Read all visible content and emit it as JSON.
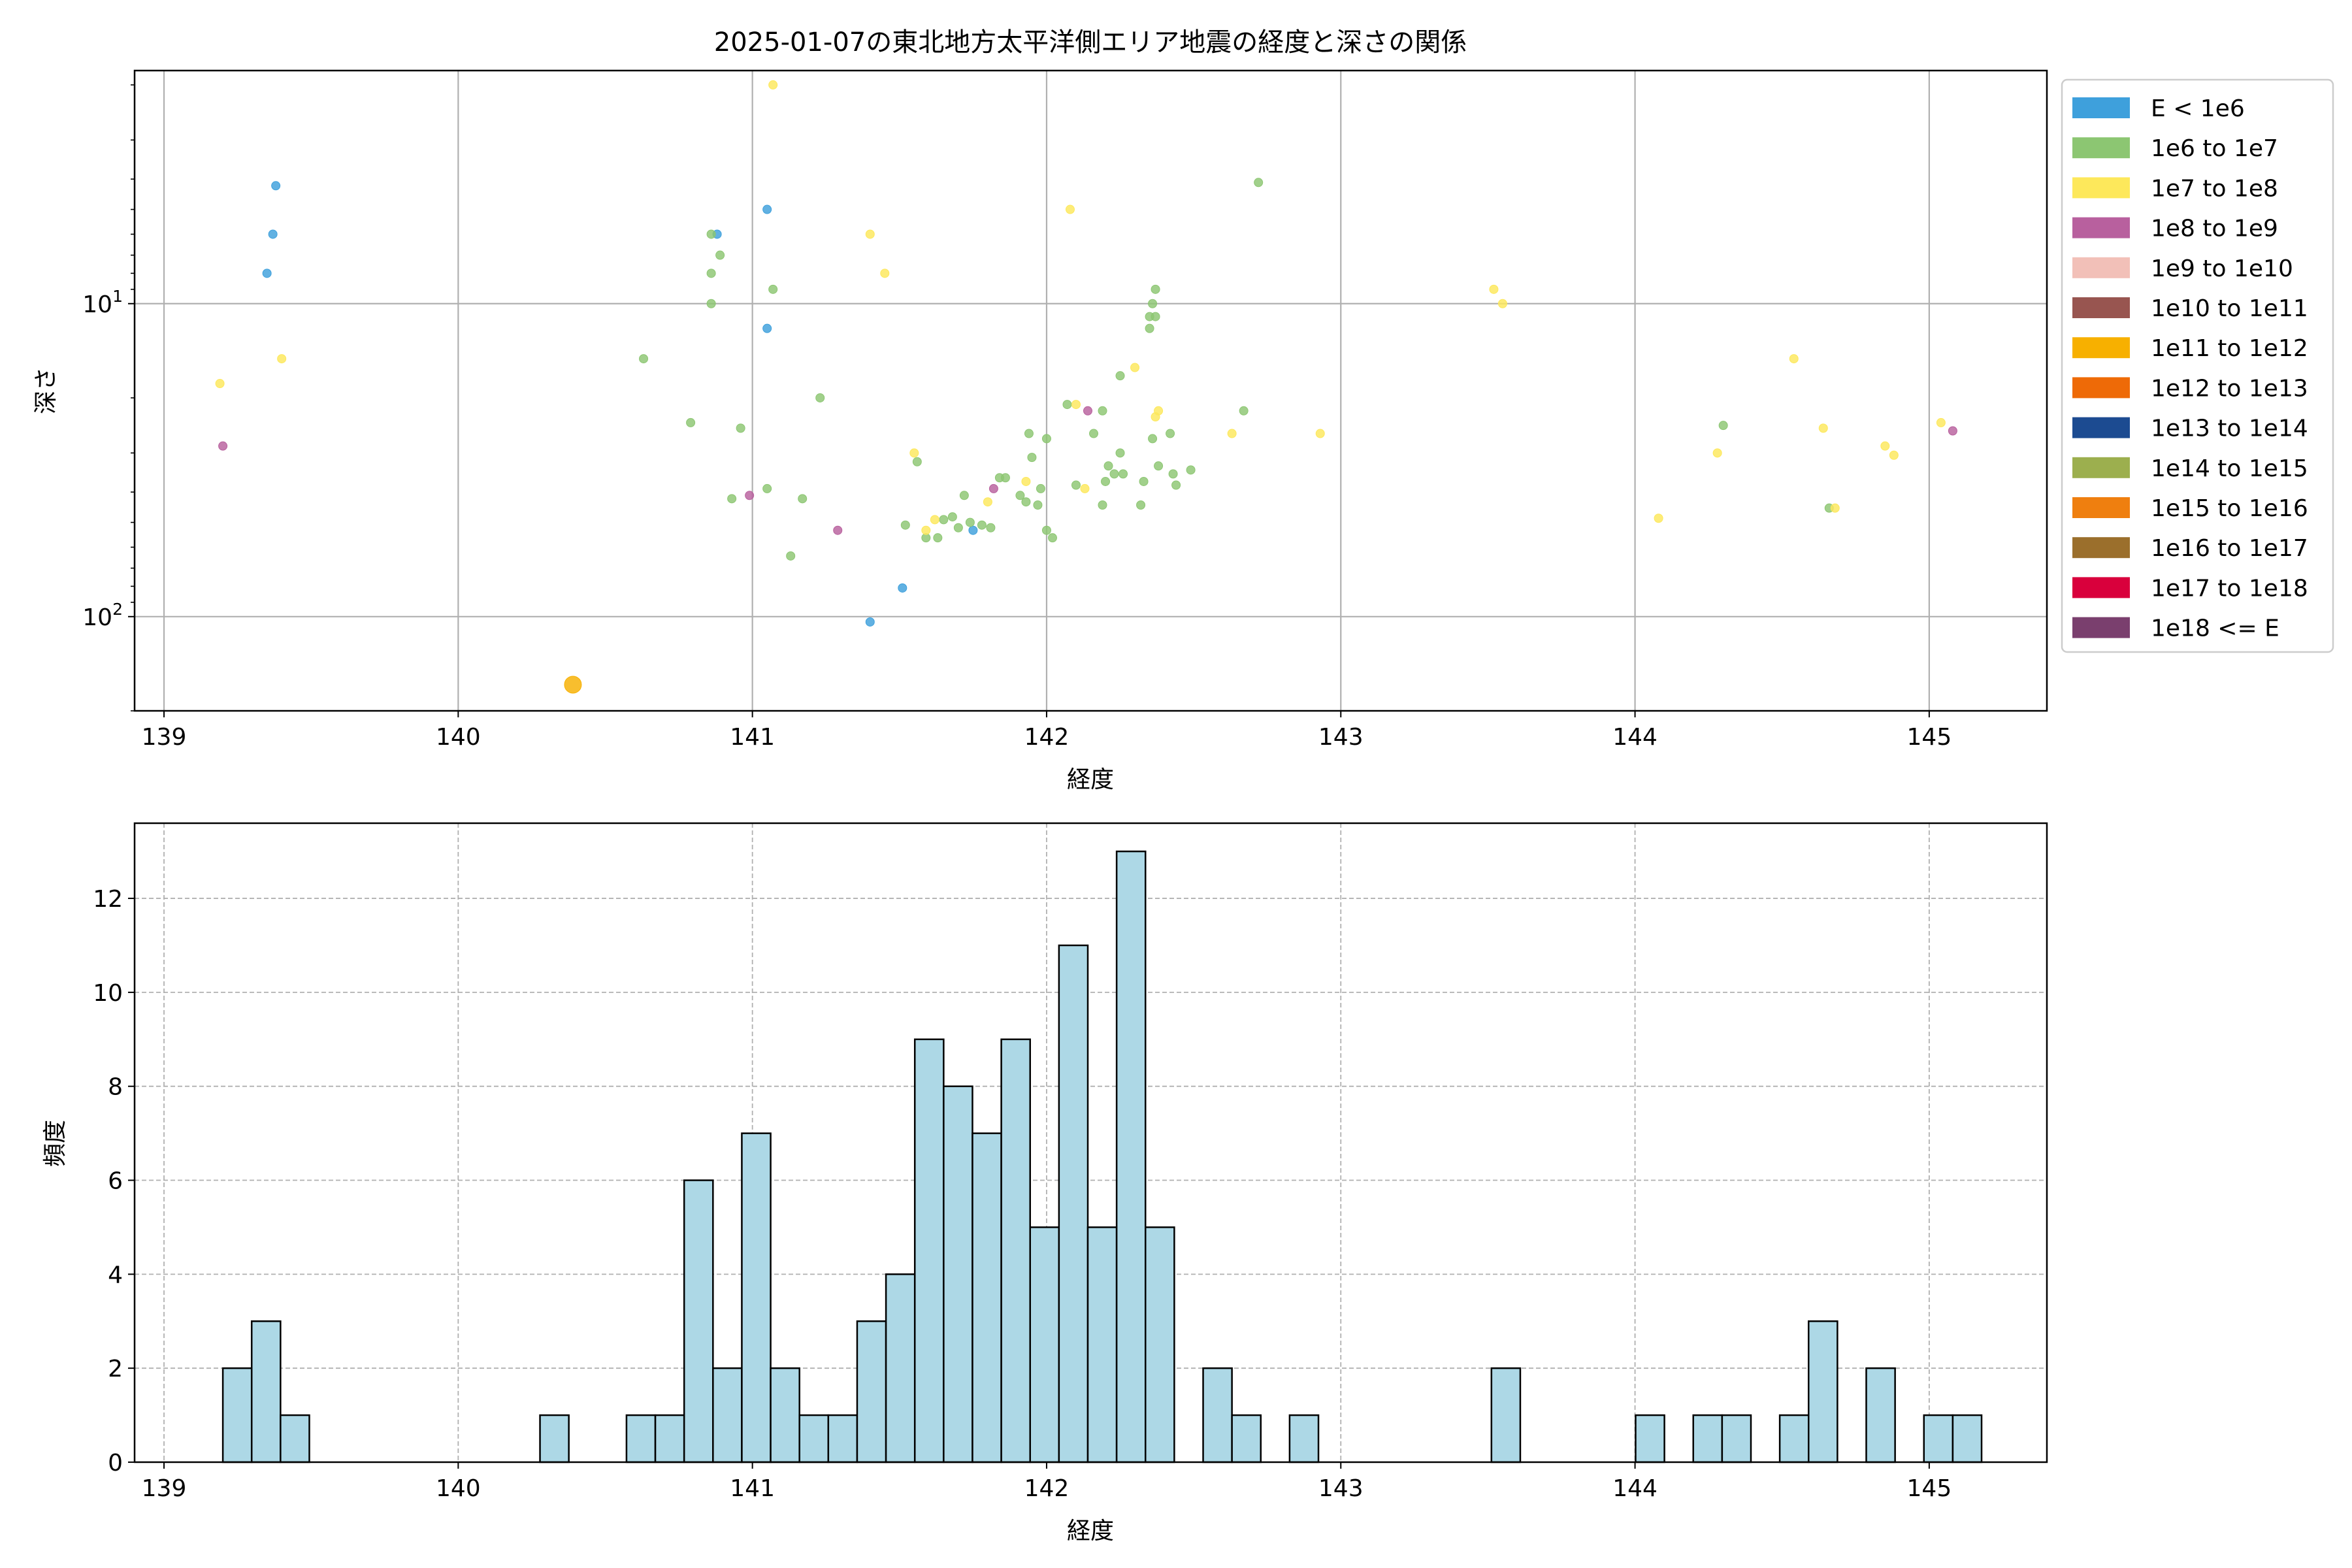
{
  "chart_data": [
    {
      "type": "scatter",
      "title": "2025-01-07の東北地方太平洋側エリア地震の経度と深さの関係",
      "xlabel": "経度",
      "ylabel": "深さ",
      "xlim": [
        138.9,
        145.4
      ],
      "ylim": [
        200,
        1.8
      ],
      "y_scale": "log",
      "y_inverted": true,
      "xticks": [
        "139",
        "140",
        "141",
        "142",
        "143",
        "144",
        "145"
      ],
      "yticks": [
        {
          "value": 10,
          "base": "10",
          "exp": "1"
        },
        {
          "value": 100,
          "base": "10",
          "exp": "2"
        }
      ],
      "grid": true,
      "legend_position": "outside-right-top",
      "legend": [
        {
          "label": "E < 1e6",
          "color": "#3ea0dc"
        },
        {
          "label": "1e6 to 1e7",
          "color": "#8cc672"
        },
        {
          "label": "1e7 to 1e8",
          "color": "#fde85b"
        },
        {
          "label": "1e8 to 1e9",
          "color": "#b8609e"
        },
        {
          "label": "1e9 to 1e10",
          "color": "#f2c0b8"
        },
        {
          "label": "1e10 to 1e11",
          "color": "#985550"
        },
        {
          "label": "1e11 to 1e12",
          "color": "#f7b000"
        },
        {
          "label": "1e12 to 1e13",
          "color": "#ee6a07"
        },
        {
          "label": "1e13 to 1e14",
          "color": "#1c4b91"
        },
        {
          "label": "1e14 to 1e15",
          "color": "#9caf4e"
        },
        {
          "label": "1e15 to 1e16",
          "color": "#ef7f0f"
        },
        {
          "label": "1e16 to 1e17",
          "color": "#9b6f2c"
        },
        {
          "label": "1e17 to 1e18",
          "color": "#d9003c"
        },
        {
          "label": "1e18 <= E",
          "color": "#7a3f6e"
        }
      ],
      "points": [
        {
          "x": 139.38,
          "y": 4.2,
          "c": 0
        },
        {
          "x": 139.37,
          "y": 6.0,
          "c": 0
        },
        {
          "x": 139.35,
          "y": 8.0,
          "c": 0
        },
        {
          "x": 140.88,
          "y": 6.0,
          "c": 0
        },
        {
          "x": 141.05,
          "y": 5.0,
          "c": 0
        },
        {
          "x": 141.05,
          "y": 12.0,
          "c": 0
        },
        {
          "x": 141.75,
          "y": 53.0,
          "c": 0
        },
        {
          "x": 141.51,
          "y": 81.0,
          "c": 0
        },
        {
          "x": 141.4,
          "y": 104.0,
          "c": 0
        },
        {
          "x": 140.86,
          "y": 6.0,
          "c": 1
        },
        {
          "x": 140.89,
          "y": 7.0,
          "c": 1
        },
        {
          "x": 140.86,
          "y": 8.0,
          "c": 1
        },
        {
          "x": 140.86,
          "y": 10.0,
          "c": 1
        },
        {
          "x": 141.07,
          "y": 9.0,
          "c": 1
        },
        {
          "x": 142.72,
          "y": 4.1,
          "c": 1
        },
        {
          "x": 140.63,
          "y": 15.0,
          "c": 1
        },
        {
          "x": 141.23,
          "y": 20.0,
          "c": 1
        },
        {
          "x": 140.79,
          "y": 24.0,
          "c": 1
        },
        {
          "x": 140.96,
          "y": 25.0,
          "c": 1
        },
        {
          "x": 141.05,
          "y": 39.0,
          "c": 1
        },
        {
          "x": 140.93,
          "y": 42.0,
          "c": 1
        },
        {
          "x": 141.17,
          "y": 42.0,
          "c": 1
        },
        {
          "x": 141.13,
          "y": 64.0,
          "c": 1
        },
        {
          "x": 141.52,
          "y": 51.0,
          "c": 1
        },
        {
          "x": 141.59,
          "y": 56.0,
          "c": 1
        },
        {
          "x": 141.63,
          "y": 56.0,
          "c": 1
        },
        {
          "x": 141.56,
          "y": 32.0,
          "c": 1
        },
        {
          "x": 141.65,
          "y": 49.0,
          "c": 1
        },
        {
          "x": 141.68,
          "y": 48.0,
          "c": 1
        },
        {
          "x": 141.7,
          "y": 52.0,
          "c": 1
        },
        {
          "x": 141.72,
          "y": 41.0,
          "c": 1
        },
        {
          "x": 141.74,
          "y": 50.0,
          "c": 1
        },
        {
          "x": 141.78,
          "y": 51.0,
          "c": 1
        },
        {
          "x": 141.84,
          "y": 36.0,
          "c": 1
        },
        {
          "x": 141.86,
          "y": 36.0,
          "c": 1
        },
        {
          "x": 141.81,
          "y": 52.0,
          "c": 1
        },
        {
          "x": 141.91,
          "y": 41.0,
          "c": 1
        },
        {
          "x": 141.93,
          "y": 43.0,
          "c": 1
        },
        {
          "x": 141.95,
          "y": 31.0,
          "c": 1
        },
        {
          "x": 141.94,
          "y": 26.0,
          "c": 1
        },
        {
          "x": 141.97,
          "y": 44.0,
          "c": 1
        },
        {
          "x": 141.98,
          "y": 39.0,
          "c": 1
        },
        {
          "x": 142.0,
          "y": 53.0,
          "c": 1
        },
        {
          "x": 142.02,
          "y": 56.0,
          "c": 1
        },
        {
          "x": 142.0,
          "y": 27.0,
          "c": 1
        },
        {
          "x": 142.07,
          "y": 21.0,
          "c": 1
        },
        {
          "x": 142.1,
          "y": 38.0,
          "c": 1
        },
        {
          "x": 142.16,
          "y": 26.0,
          "c": 1
        },
        {
          "x": 142.19,
          "y": 22.0,
          "c": 1
        },
        {
          "x": 142.2,
          "y": 37.0,
          "c": 1
        },
        {
          "x": 142.19,
          "y": 44.0,
          "c": 1
        },
        {
          "x": 142.21,
          "y": 33.0,
          "c": 1
        },
        {
          "x": 142.23,
          "y": 35.0,
          "c": 1
        },
        {
          "x": 142.25,
          "y": 30.0,
          "c": 1
        },
        {
          "x": 142.25,
          "y": 17.0,
          "c": 1
        },
        {
          "x": 142.26,
          "y": 35.0,
          "c": 1
        },
        {
          "x": 142.33,
          "y": 37.0,
          "c": 1
        },
        {
          "x": 142.32,
          "y": 44.0,
          "c": 1
        },
        {
          "x": 142.35,
          "y": 11.0,
          "c": 1
        },
        {
          "x": 142.36,
          "y": 10.0,
          "c": 1
        },
        {
          "x": 142.37,
          "y": 11.0,
          "c": 1
        },
        {
          "x": 142.35,
          "y": 12.0,
          "c": 1
        },
        {
          "x": 142.37,
          "y": 9.0,
          "c": 1
        },
        {
          "x": 142.38,
          "y": 33.0,
          "c": 1
        },
        {
          "x": 142.36,
          "y": 27.0,
          "c": 1
        },
        {
          "x": 142.42,
          "y": 26.0,
          "c": 1
        },
        {
          "x": 142.43,
          "y": 35.0,
          "c": 1
        },
        {
          "x": 142.44,
          "y": 38.0,
          "c": 1
        },
        {
          "x": 142.49,
          "y": 34.0,
          "c": 1
        },
        {
          "x": 142.67,
          "y": 22.0,
          "c": 1
        },
        {
          "x": 144.3,
          "y": 24.5,
          "c": 1
        },
        {
          "x": 144.66,
          "y": 45.0,
          "c": 1
        },
        {
          "x": 141.07,
          "y": 2.0,
          "c": 2
        },
        {
          "x": 142.08,
          "y": 5.0,
          "c": 2
        },
        {
          "x": 141.4,
          "y": 6.0,
          "c": 2
        },
        {
          "x": 141.45,
          "y": 8.0,
          "c": 2
        },
        {
          "x": 139.4,
          "y": 15.0,
          "c": 2
        },
        {
          "x": 139.19,
          "y": 18.0,
          "c": 2
        },
        {
          "x": 143.52,
          "y": 9.0,
          "c": 2
        },
        {
          "x": 143.55,
          "y": 10.0,
          "c": 2
        },
        {
          "x": 142.3,
          "y": 16.0,
          "c": 2
        },
        {
          "x": 142.38,
          "y": 22.0,
          "c": 2
        },
        {
          "x": 142.37,
          "y": 23.0,
          "c": 2
        },
        {
          "x": 142.63,
          "y": 26.0,
          "c": 2
        },
        {
          "x": 142.93,
          "y": 26.0,
          "c": 2
        },
        {
          "x": 141.55,
          "y": 30.0,
          "c": 2
        },
        {
          "x": 141.93,
          "y": 37.0,
          "c": 2
        },
        {
          "x": 142.13,
          "y": 39.0,
          "c": 2
        },
        {
          "x": 142.1,
          "y": 21.0,
          "c": 2
        },
        {
          "x": 141.8,
          "y": 43.0,
          "c": 2
        },
        {
          "x": 141.62,
          "y": 49.0,
          "c": 2
        },
        {
          "x": 141.59,
          "y": 53.0,
          "c": 2
        },
        {
          "x": 144.54,
          "y": 15.0,
          "c": 2
        },
        {
          "x": 144.64,
          "y": 25.0,
          "c": 2
        },
        {
          "x": 144.85,
          "y": 28.5,
          "c": 2
        },
        {
          "x": 144.88,
          "y": 30.5,
          "c": 2
        },
        {
          "x": 145.04,
          "y": 24.0,
          "c": 2
        },
        {
          "x": 144.28,
          "y": 30.0,
          "c": 2
        },
        {
          "x": 144.08,
          "y": 48.5,
          "c": 2
        },
        {
          "x": 144.68,
          "y": 45.0,
          "c": 2
        },
        {
          "x": 139.2,
          "y": 28.5,
          "c": 3
        },
        {
          "x": 140.99,
          "y": 41.0,
          "c": 3
        },
        {
          "x": 141.29,
          "y": 53.0,
          "c": 3
        },
        {
          "x": 141.82,
          "y": 39.0,
          "c": 3
        },
        {
          "x": 142.14,
          "y": 22.0,
          "c": 3
        },
        {
          "x": 145.08,
          "y": 25.5,
          "c": 3
        },
        {
          "x": 140.39,
          "y": 165.0,
          "c": 6,
          "big": true
        }
      ]
    },
    {
      "type": "bar",
      "title": "",
      "xlabel": "経度",
      "ylabel": "頻度",
      "xlim": [
        138.9,
        145.4
      ],
      "ylim": [
        0,
        13.6
      ],
      "xticks": [
        "139",
        "140",
        "141",
        "142",
        "143",
        "144",
        "145"
      ],
      "yticks": [
        "0",
        "2",
        "4",
        "6",
        "8",
        "10",
        "12"
      ],
      "grid": true,
      "bin_start": 139.2,
      "bin_width": 0.098,
      "values": [
        2,
        3,
        1,
        0,
        0,
        0,
        0,
        0,
        0,
        0,
        0,
        1,
        0,
        0,
        1,
        1,
        6,
        2,
        7,
        2,
        1,
        1,
        3,
        4,
        9,
        8,
        7,
        9,
        5,
        11,
        5,
        13,
        5,
        0,
        2,
        1,
        0,
        1,
        0,
        0,
        0,
        0,
        0,
        0,
        2,
        0,
        0,
        0,
        0,
        1,
        0,
        1,
        1,
        0,
        1,
        3,
        0,
        2,
        0,
        1,
        1
      ],
      "bar_color": "#add8e6",
      "edge_color": "#000000"
    }
  ]
}
